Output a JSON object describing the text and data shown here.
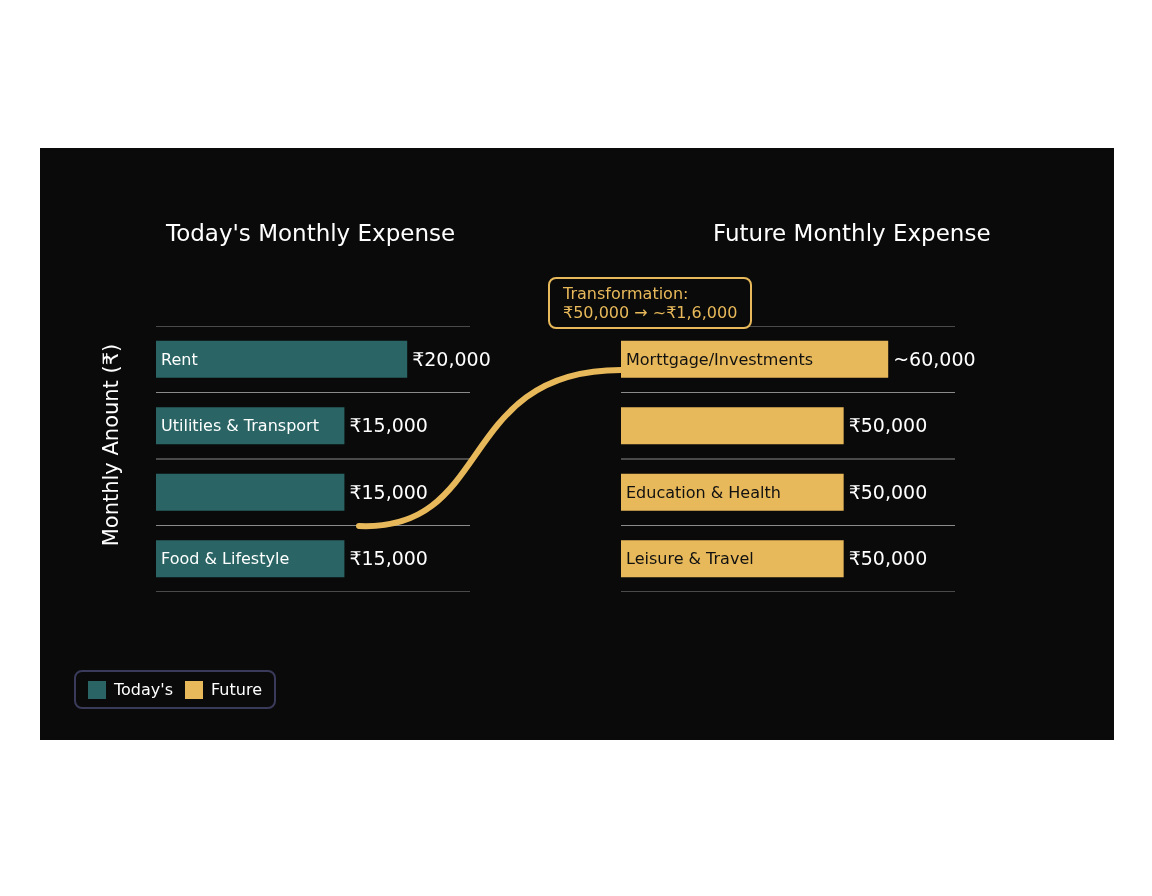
{
  "chart_data": [
    {
      "type": "bar",
      "orientation": "horizontal",
      "title": "Today's Monthly Expense",
      "ylabel": "Monthly Anount (₹)",
      "categories": [
        "Rent",
        "Utilities & Transport",
        null,
        "Food & Lifestyle"
      ],
      "series": [
        {
          "name": "Today's",
          "color": "#2a6464",
          "values": [
            20000,
            15000,
            15000,
            15000
          ],
          "value_labels": [
            "₹20,000",
            "₹15,000",
            "₹15,000",
            "₹15,000"
          ]
        }
      ],
      "grid": true,
      "legend": "bottom left",
      "tick_labels": false
    },
    {
      "type": "bar",
      "orientation": "horizontal",
      "title": "Future Monthly Expense",
      "categories": [
        "Morttgage/Investments",
        null,
        "Education & Health",
        "Leisure & Travel"
      ],
      "series": [
        {
          "name": "Future",
          "color": "#e8b95a",
          "values": [
            60000,
            50000,
            50000,
            50000
          ],
          "value_labels": [
            "~60,000",
            "₹50,000",
            "₹50,000",
            "₹50,000"
          ]
        }
      ],
      "annotations": [
        "Transformation:\n₹50,000 → ~₹1,6,000"
      ],
      "grid": true,
      "tick_labels": false
    }
  ]
}
